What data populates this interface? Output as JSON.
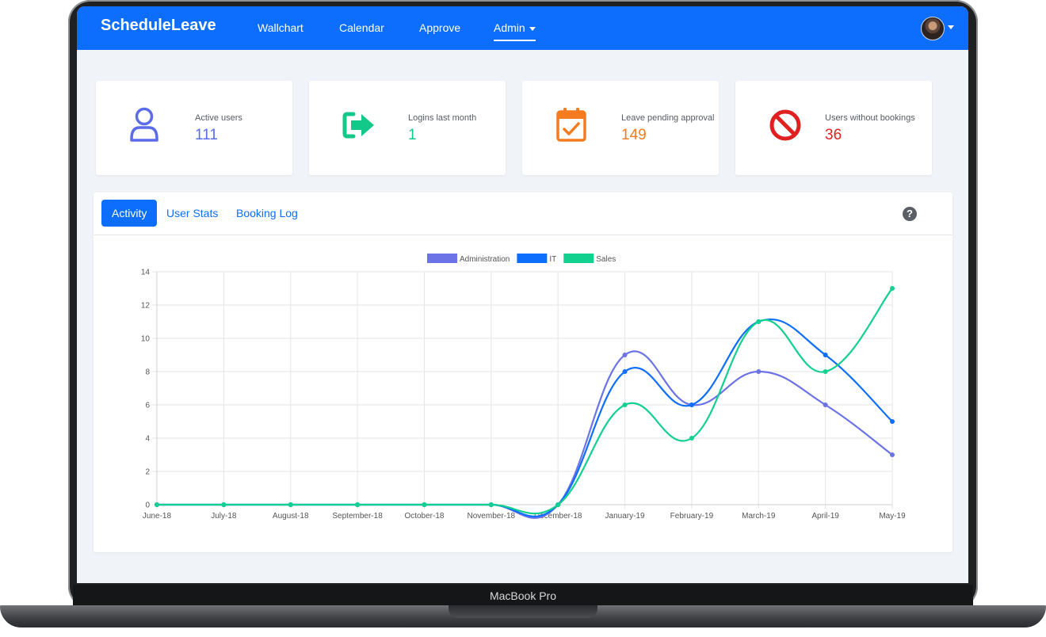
{
  "device_label": "MacBook Pro",
  "navbar": {
    "brand": "ScheduleLeave",
    "links": [
      "Wallchart",
      "Calendar",
      "Approve"
    ],
    "admin_label": "Admin"
  },
  "stats": [
    {
      "label": "Active users",
      "value": "111",
      "color": "#5b6ce8",
      "icon": "user-icon"
    },
    {
      "label": "Logins last month",
      "value": "1",
      "color": "#12c98a",
      "icon": "sign-in-arrow-icon"
    },
    {
      "label": "Leave pending approval",
      "value": "149",
      "color": "#f47b20",
      "icon": "calendar-check-icon"
    },
    {
      "label": "Users without bookings",
      "value": "36",
      "color": "#e02020",
      "icon": "ban-icon"
    }
  ],
  "tabs": [
    "Activity",
    "User Stats",
    "Booking Log"
  ],
  "help_icon": "?",
  "chart_data": {
    "type": "line",
    "categories": [
      "June-18",
      "July-18",
      "August-18",
      "September-18",
      "October-18",
      "November-18",
      "December-18",
      "January-19",
      "February-19",
      "March-19",
      "April-19",
      "May-19"
    ],
    "series": [
      {
        "name": "Administration",
        "color": "#6b73e6",
        "values": [
          0,
          0,
          0,
          0,
          0,
          0,
          0,
          9,
          6,
          8,
          6,
          3
        ]
      },
      {
        "name": "IT",
        "color": "#0d6efd",
        "values": [
          0,
          0,
          0,
          0,
          0,
          0,
          0,
          8,
          6,
          11,
          9,
          5
        ]
      },
      {
        "name": "Sales",
        "color": "#12d18e",
        "values": [
          0,
          0,
          0,
          0,
          0,
          0,
          0,
          6,
          4,
          11,
          8,
          13
        ]
      }
    ],
    "ylim": [
      0,
      14
    ],
    "yticks": [
      0,
      2,
      4,
      6,
      8,
      10,
      12,
      14
    ],
    "grid": true,
    "legend": "top-center"
  }
}
